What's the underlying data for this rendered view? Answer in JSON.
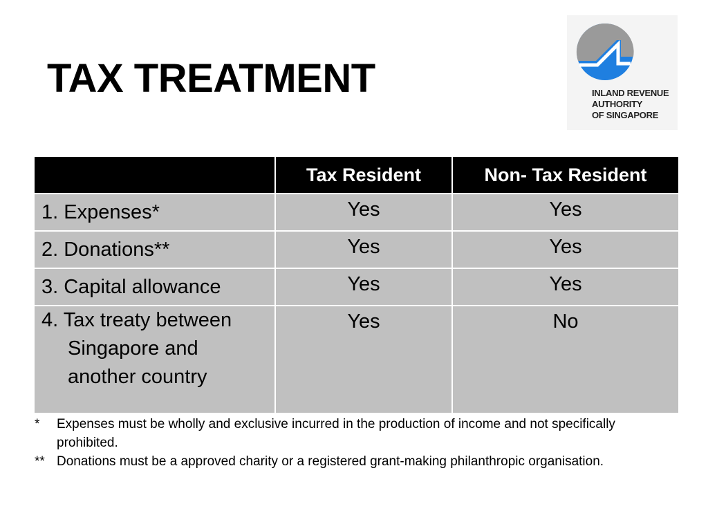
{
  "title": "TAX TREATMENT",
  "logo": {
    "lines": [
      "INLAND REVENUE",
      "AUTHORITY",
      "OF SINGAPORE"
    ],
    "colors": {
      "blue": "#1f7fe0",
      "gray": "#9a9a9a"
    }
  },
  "table": {
    "headers": [
      "",
      "Tax Resident",
      "Non- Tax Resident"
    ],
    "rows": [
      {
        "label": "1. Expenses*",
        "resident": "Yes",
        "non_resident": "Yes"
      },
      {
        "label": "2. Donations**",
        "resident": "Yes",
        "non_resident": "Yes"
      },
      {
        "label": "3. Capital allowance",
        "resident": "Yes",
        "non_resident": "Yes"
      },
      {
        "label": "4. Tax treaty between Singapore and another country",
        "resident": "Yes",
        "non_resident": "No"
      }
    ]
  },
  "notes": [
    {
      "mark": "*",
      "text": "Expenses must be wholly and exclusive incurred in the production of income and not specifically prohibited."
    },
    {
      "mark": "**",
      "text": "Donations must be a approved charity or a registered grant-making philanthropic organisation."
    }
  ]
}
